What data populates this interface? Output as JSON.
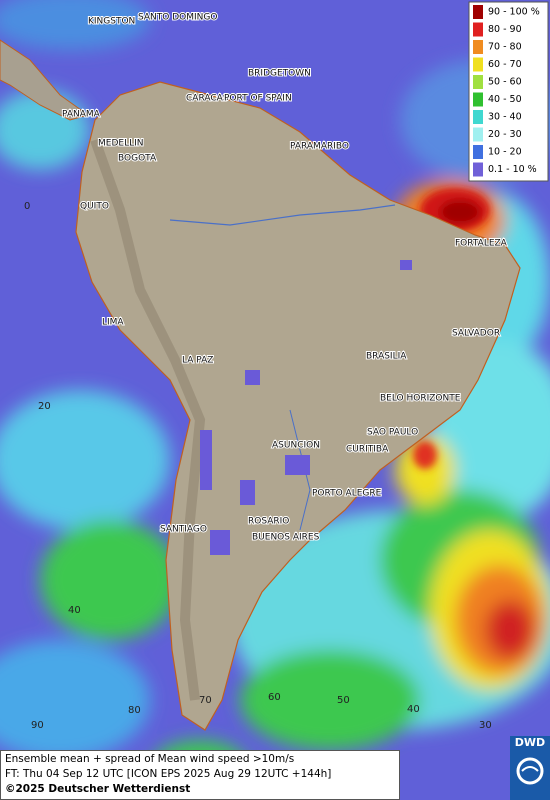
{
  "legend": {
    "items": [
      {
        "label": "90 - 100 %",
        "color": "#a00000"
      },
      {
        "label": "80 - 90",
        "color": "#e02020"
      },
      {
        "label": "70 - 80",
        "color": "#f08c20"
      },
      {
        "label": "60 - 70",
        "color": "#f0e020"
      },
      {
        "label": "50 - 60",
        "color": "#a0e040"
      },
      {
        "label": "40 - 50",
        "color": "#30c030"
      },
      {
        "label": "30 - 40",
        "color": "#40d8d0"
      },
      {
        "label": "20 - 30",
        "color": "#a0f0f0"
      },
      {
        "label": "10 - 20",
        "color": "#4070e0"
      },
      {
        "label": "0.1 - 10 %",
        "color": "#7060d8"
      }
    ]
  },
  "cities": [
    "KINGSTON",
    "SANTO DOMINGO",
    "BRIDGETOWN",
    "CARACAS",
    "PORT OF SPAIN",
    "PANAMA",
    "MEDELLIN",
    "BOGOTA",
    "PARAMARIBO",
    "QUITO",
    "FORTALEZA",
    "LIMA",
    "SALVADOR",
    "BRASILIA",
    "LA PAZ",
    "BELO HORIZONTE",
    "SAO PAULO",
    "ASUNCION",
    "CURITIBA",
    "PORTO ALEGRE",
    "SANTIAGO",
    "ROSARIO",
    "BUENOS AIRES"
  ],
  "latitude_labels": [
    "0",
    "20",
    "40"
  ],
  "longitude_labels": [
    "90",
    "80",
    "70",
    "60",
    "50",
    "40",
    "30"
  ],
  "footer": {
    "line1": "Ensemble mean + spread of Mean wind speed >10m/s",
    "line2": "FT: Thu 04 Sep 12 UTC [ICON EPS 2025 Aug 29 12UTC +144h]",
    "copyright": "©2025 Deutscher Wetterdienst"
  },
  "logo": "DWD"
}
